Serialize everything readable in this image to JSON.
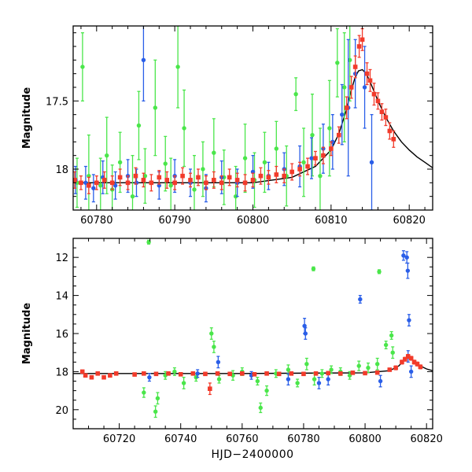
{
  "chart_data": [
    {
      "type": "scatter",
      "title": "",
      "xlabel": "",
      "ylabel": "Magnitude",
      "xlim": [
        60777,
        60823
      ],
      "ylim": [
        18.3,
        16.95
      ],
      "y_inverted": true,
      "xticks": [
        60780,
        60790,
        60800,
        60810,
        60820
      ],
      "yticks": [
        17.5,
        18
      ],
      "grid": false,
      "model_line": {
        "color": "#000000",
        "x": [
          60777,
          60790,
          60800,
          60805,
          60808,
          60810,
          60811,
          60812,
          60812.5,
          60813,
          60813.5,
          60814,
          60814.5,
          60815,
          60815.5,
          60816,
          60817,
          60818,
          60819,
          60820,
          60821,
          60822,
          60823
        ],
        "y": [
          18.1,
          18.1,
          18.1,
          18.06,
          17.98,
          17.86,
          17.74,
          17.56,
          17.44,
          17.34,
          17.28,
          17.27,
          17.3,
          17.36,
          17.43,
          17.5,
          17.62,
          17.72,
          17.8,
          17.86,
          17.91,
          17.95,
          17.99
        ]
      },
      "series": [
        {
          "color": "#4ae64a",
          "x": [
            60777.5,
            60778.2,
            60779.0,
            60780.5,
            60781.3,
            60782.0,
            60783.0,
            60784.6,
            60785.4,
            60786.2,
            60787.5,
            60788.8,
            60789.5,
            60790.4,
            60791.2,
            60792.5,
            60793.6,
            60795.0,
            60796.3,
            60797.8,
            60799.0,
            60800.2,
            60801.5,
            60803.0,
            60804.3,
            60805.5,
            60806.5,
            60807.6,
            60808.6,
            60809.8,
            60810.8,
            60811.7,
            60812.4
          ],
          "y": [
            18.1,
            17.25,
            18.05,
            18.12,
            17.9,
            18.15,
            17.95,
            18.2,
            17.68,
            18.05,
            17.55,
            17.96,
            18.12,
            17.25,
            17.7,
            18.15,
            18.0,
            17.88,
            18.06,
            18.2,
            17.92,
            18.08,
            17.95,
            17.85,
            18.05,
            17.45,
            17.95,
            17.75,
            18.05,
            17.7,
            17.22,
            17.4,
            17.2
          ],
          "err": [
            0.18,
            0.25,
            0.3,
            0.2,
            0.28,
            0.18,
            0.22,
            0.3,
            0.25,
            0.2,
            0.35,
            0.2,
            0.2,
            0.3,
            0.28,
            0.25,
            0.2,
            0.25,
            0.2,
            0.22,
            0.25,
            0.2,
            0.22,
            0.2,
            0.22,
            0.12,
            0.25,
            0.3,
            0.35,
            0.35,
            0.25,
            0.4,
            0.3
          ]
        },
        {
          "color": "#2a5ee8",
          "x": [
            60777.3,
            60778.6,
            60779.6,
            60780.8,
            60782.4,
            60784.0,
            60785.1,
            60786.0,
            60788.0,
            60790.0,
            60792.0,
            60794.0,
            60796.0,
            60798.0,
            60800.0,
            60802.0,
            60804.0,
            60806.0,
            60807.5,
            60809.0,
            60810.2,
            60811.4,
            60812.2,
            60813.1,
            60814.3,
            60815.2
          ],
          "y": [
            18.08,
            18.1,
            18.14,
            18.06,
            18.12,
            18.05,
            18.1,
            17.2,
            18.12,
            18.05,
            18.1,
            18.14,
            18.06,
            18.1,
            18.02,
            18.05,
            18.0,
            17.98,
            17.92,
            17.85,
            17.8,
            17.6,
            17.55,
            17.3,
            17.4,
            17.95
          ],
          "err": [
            0.1,
            0.12,
            0.1,
            0.12,
            0.1,
            0.12,
            0.1,
            0.3,
            0.1,
            0.12,
            0.1,
            0.1,
            0.12,
            0.1,
            0.12,
            0.1,
            0.12,
            0.15,
            0.15,
            0.18,
            0.2,
            0.22,
            0.5,
            0.25,
            0.3,
            0.35
          ]
        },
        {
          "color": "#f23b2b",
          "x": [
            60777.2,
            60778.0,
            60779.0,
            60780.0,
            60781.0,
            60782.0,
            60783.0,
            60784.0,
            60785.0,
            60786.0,
            60787.0,
            60788.0,
            60789.0,
            60790.0,
            60791.0,
            60792.0,
            60793.0,
            60794.0,
            60795.0,
            60796.0,
            60797.0,
            60798.0,
            60799.0,
            60800.0,
            60801.0,
            60802.0,
            60803.0,
            60804.0,
            60805.0,
            60806.0,
            60807.0,
            60808.0,
            60809.0,
            60810.0,
            60811.0,
            60812.0,
            60812.6,
            60813.1,
            60813.6,
            60814.0,
            60814.6,
            60815.0,
            60815.5,
            60816.0,
            60816.5,
            60817.0,
            60817.5,
            60818.0
          ],
          "y": [
            18.08,
            18.1,
            18.12,
            18.1,
            18.08,
            18.1,
            18.06,
            18.1,
            18.05,
            18.08,
            18.1,
            18.06,
            18.08,
            18.1,
            18.05,
            18.08,
            18.06,
            18.1,
            18.08,
            18.1,
            18.06,
            18.08,
            18.1,
            18.08,
            18.05,
            18.06,
            18.04,
            18.05,
            18.02,
            18.0,
            17.98,
            17.92,
            17.9,
            17.85,
            17.75,
            17.55,
            17.4,
            17.25,
            17.1,
            17.05,
            17.3,
            17.35,
            17.45,
            17.5,
            17.58,
            17.62,
            17.72,
            17.78
          ],
          "err": [
            0.06,
            0.05,
            0.06,
            0.05,
            0.06,
            0.05,
            0.06,
            0.05,
            0.06,
            0.05,
            0.06,
            0.05,
            0.06,
            0.05,
            0.06,
            0.05,
            0.06,
            0.05,
            0.06,
            0.05,
            0.06,
            0.05,
            0.06,
            0.05,
            0.06,
            0.05,
            0.06,
            0.05,
            0.06,
            0.05,
            0.06,
            0.05,
            0.06,
            0.05,
            0.06,
            0.08,
            0.08,
            0.08,
            0.08,
            0.08,
            0.08,
            0.08,
            0.08,
            0.06,
            0.06,
            0.06,
            0.06,
            0.06
          ]
        }
      ]
    },
    {
      "type": "scatter",
      "title": "",
      "xlabel": "HJD−2400000",
      "ylabel": "Magnitude",
      "xlim": [
        60705,
        60822
      ],
      "ylim": [
        21.0,
        11.0
      ],
      "y_inverted": true,
      "xticks": [
        60720,
        60740,
        60760,
        60780,
        60800,
        60820
      ],
      "yticks": [
        12,
        14,
        16,
        18,
        20
      ],
      "grid": false,
      "model_line": {
        "color": "#000000",
        "x": [
          60705,
          60760,
          60800,
          60808,
          60811,
          60813,
          60814,
          60815,
          60817,
          60820,
          60822
        ],
        "y": [
          18.1,
          18.1,
          18.06,
          17.95,
          17.7,
          17.35,
          17.27,
          17.35,
          17.62,
          17.86,
          17.95
        ]
      },
      "series": [
        {
          "color": "#4ae64a",
          "x": [
            60729.3,
            60729.6,
            60728.0,
            60731.8,
            60732.5,
            60735.0,
            60738.0,
            60741.0,
            60745.0,
            60750.0,
            60750.8,
            60752.5,
            60757.0,
            60760.0,
            60765.0,
            60766.0,
            60768.0,
            60771.0,
            60775.0,
            60778.0,
            60781.0,
            60783.2,
            60783.5,
            60786.0,
            60789.0,
            60792.0,
            60795.0,
            60798.0,
            60801.0,
            60804.0,
            60804.6,
            60806.8,
            60808.6,
            60809.0
          ],
          "y": [
            10.9,
            11.2,
            19.1,
            20.1,
            19.4,
            18.2,
            18.0,
            18.6,
            18.3,
            16.0,
            16.7,
            18.4,
            18.2,
            18.0,
            18.5,
            19.9,
            19.0,
            18.1,
            17.9,
            18.6,
            17.6,
            12.6,
            18.4,
            18.1,
            17.9,
            18.0,
            18.2,
            17.7,
            17.8,
            17.6,
            12.75,
            16.6,
            16.1,
            17.0
          ],
          "err": [
            0.1,
            0.1,
            0.25,
            0.3,
            0.3,
            0.2,
            0.2,
            0.3,
            0.2,
            0.3,
            0.3,
            0.2,
            0.25,
            0.2,
            0.2,
            0.25,
            0.25,
            0.2,
            0.25,
            0.2,
            0.3,
            0.1,
            0.3,
            0.2,
            0.2,
            0.2,
            0.2,
            0.25,
            0.25,
            0.3,
            0.1,
            0.2,
            0.2,
            0.3
          ]
        },
        {
          "color": "#2a5ee8",
          "x": [
            60729.8,
            60745.5,
            60752.2,
            60763.0,
            60775.0,
            60780.3,
            60780.6,
            60785.0,
            60788.0,
            60798.4,
            60805.0,
            60812.5,
            60813.6,
            60813.9,
            60814.3,
            60814.0,
            60815.0
          ],
          "y": [
            18.3,
            18.1,
            17.5,
            18.2,
            18.4,
            15.6,
            16.0,
            18.6,
            18.4,
            14.2,
            18.5,
            11.9,
            12.0,
            12.7,
            15.3,
            17.2,
            18.0
          ],
          "err": [
            0.2,
            0.2,
            0.3,
            0.2,
            0.3,
            0.4,
            0.3,
            0.3,
            0.3,
            0.2,
            0.3,
            0.25,
            0.3,
            0.4,
            0.3,
            0.3,
            0.3
          ]
        },
        {
          "color": "#f23b2b",
          "x": [
            60708,
            60709,
            60711,
            60713,
            60715,
            60717,
            60719,
            60725,
            60728,
            60732,
            60736,
            60740,
            60744,
            60748,
            60749.5,
            60752,
            60756,
            60760,
            60764,
            60768,
            60772,
            60776,
            60780,
            60784,
            60788,
            60792,
            60796,
            60800,
            60804,
            60808,
            60810,
            60812,
            60813,
            60814,
            60815,
            60816,
            60817,
            60818
          ],
          "y": [
            18.0,
            18.2,
            18.3,
            18.1,
            18.3,
            18.2,
            18.1,
            18.15,
            18.1,
            18.12,
            18.1,
            18.14,
            18.1,
            18.12,
            18.9,
            18.1,
            18.12,
            18.1,
            18.14,
            18.1,
            18.12,
            18.1,
            18.12,
            18.1,
            18.08,
            18.1,
            18.06,
            18.08,
            18.05,
            17.9,
            17.8,
            17.5,
            17.35,
            17.2,
            17.3,
            17.5,
            17.6,
            17.75
          ],
          "err": [
            0.08,
            0.08,
            0.08,
            0.08,
            0.08,
            0.08,
            0.08,
            0.08,
            0.08,
            0.08,
            0.08,
            0.08,
            0.08,
            0.08,
            0.3,
            0.08,
            0.08,
            0.08,
            0.08,
            0.08,
            0.08,
            0.08,
            0.08,
            0.08,
            0.08,
            0.08,
            0.08,
            0.08,
            0.08,
            0.08,
            0.1,
            0.1,
            0.1,
            0.1,
            0.1,
            0.1,
            0.1,
            0.1
          ]
        }
      ]
    }
  ]
}
